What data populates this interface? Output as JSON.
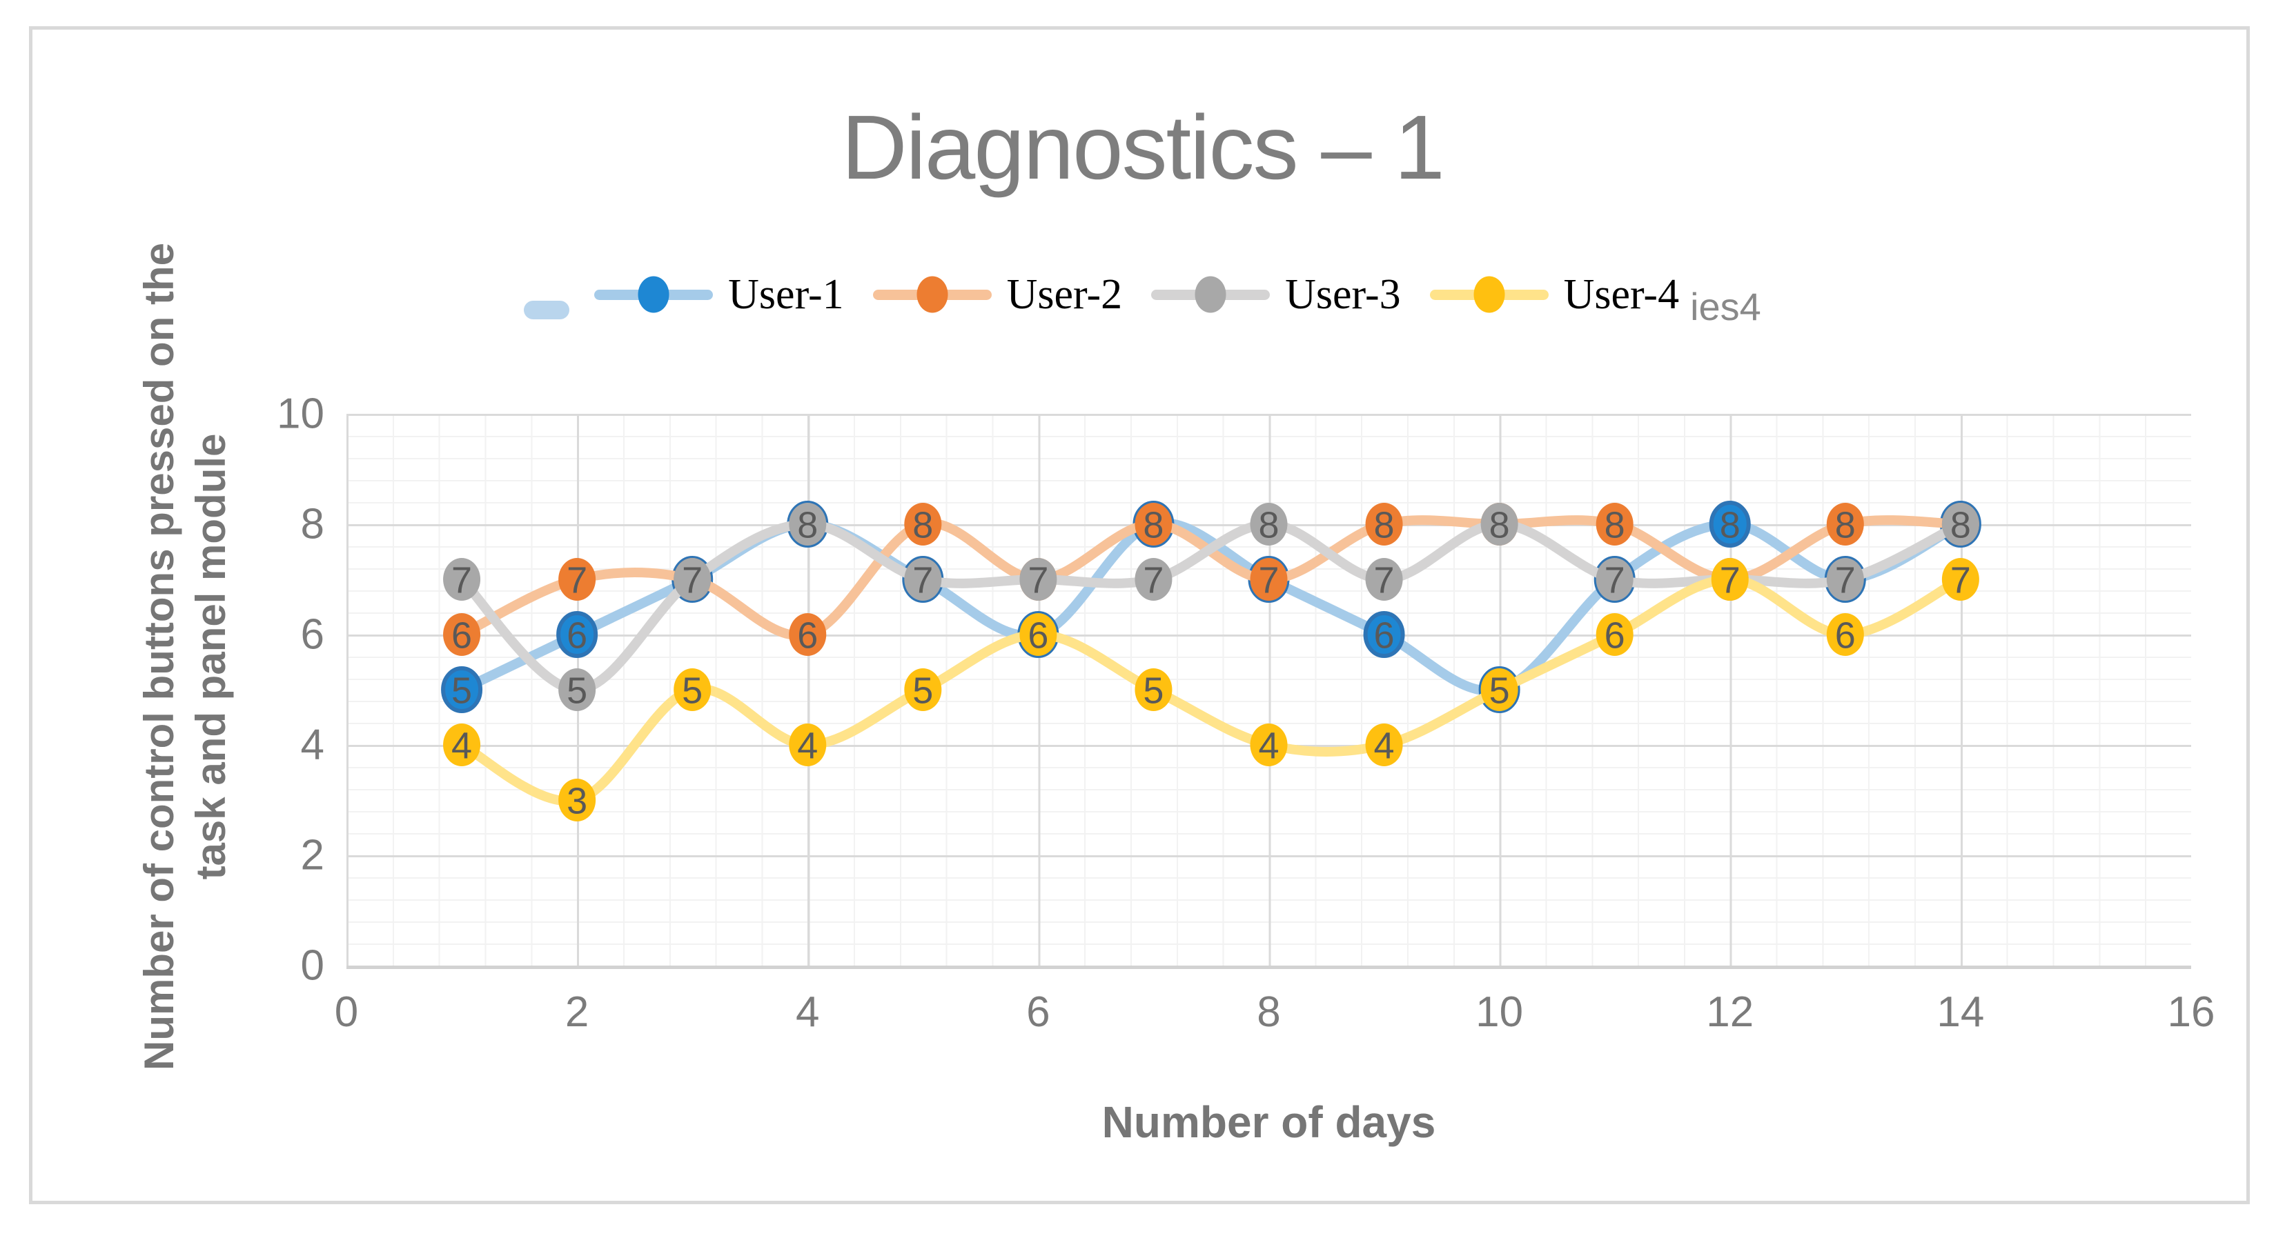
{
  "chart_data": {
    "type": "line",
    "title": "Diagnostics – 1",
    "x": [
      1,
      2,
      3,
      4,
      5,
      6,
      7,
      8,
      9,
      10,
      11,
      12,
      13,
      14
    ],
    "series": [
      {
        "name": "User-1",
        "values": [
          5,
          6,
          7,
          8,
          7,
          6,
          8,
          7,
          6,
          5,
          7,
          8,
          7,
          8
        ],
        "line_color": "#a5cbe9",
        "marker_color": "#1e87d3",
        "marker_ring_color": "#2e74b5"
      },
      {
        "name": "User-2",
        "values": [
          6,
          7,
          7,
          6,
          8,
          7,
          8,
          7,
          8,
          8,
          8,
          7,
          8,
          8
        ],
        "line_color": "#f7c299",
        "marker_color": "#ed7d31",
        "marker_ring_color": ""
      },
      {
        "name": "User-3",
        "values": [
          7,
          5,
          7,
          8,
          7,
          7,
          7,
          8,
          7,
          8,
          7,
          7,
          7,
          8
        ],
        "line_color": "#d4d3d3",
        "marker_color": "#a8a8a8",
        "marker_ring_color": ""
      },
      {
        "name": "User-4",
        "values": [
          4,
          3,
          5,
          4,
          5,
          6,
          5,
          4,
          4,
          5,
          6,
          7,
          6,
          7
        ],
        "line_color": "#ffe38a",
        "marker_color": "#ffc010",
        "marker_ring_color": ""
      }
    ],
    "data_labels": true,
    "data_label_color": "#595959",
    "xlabel": "Number of days",
    "ylabel": "Number of control buttons pressed on the task and panel module",
    "ylabel_lines": [
      "Number of control buttons pressed on the",
      "task and panel module"
    ],
    "x_ticks": [
      "0",
      "2",
      "4",
      "6",
      "8",
      "10",
      "12",
      "14",
      "16"
    ],
    "y_ticks": [
      "10",
      "8",
      "6",
      "4",
      "2",
      "0"
    ],
    "xlim": [
      0,
      16
    ],
    "ylim": [
      0,
      10
    ],
    "grid": {
      "minor_step": 0.4,
      "major_step": 2,
      "minor_color": "#f2f2f2",
      "major_color": "#dadada"
    },
    "legend_position": "top",
    "legend_artifact_text": "ies4",
    "title_color": "#7e7e7e"
  }
}
